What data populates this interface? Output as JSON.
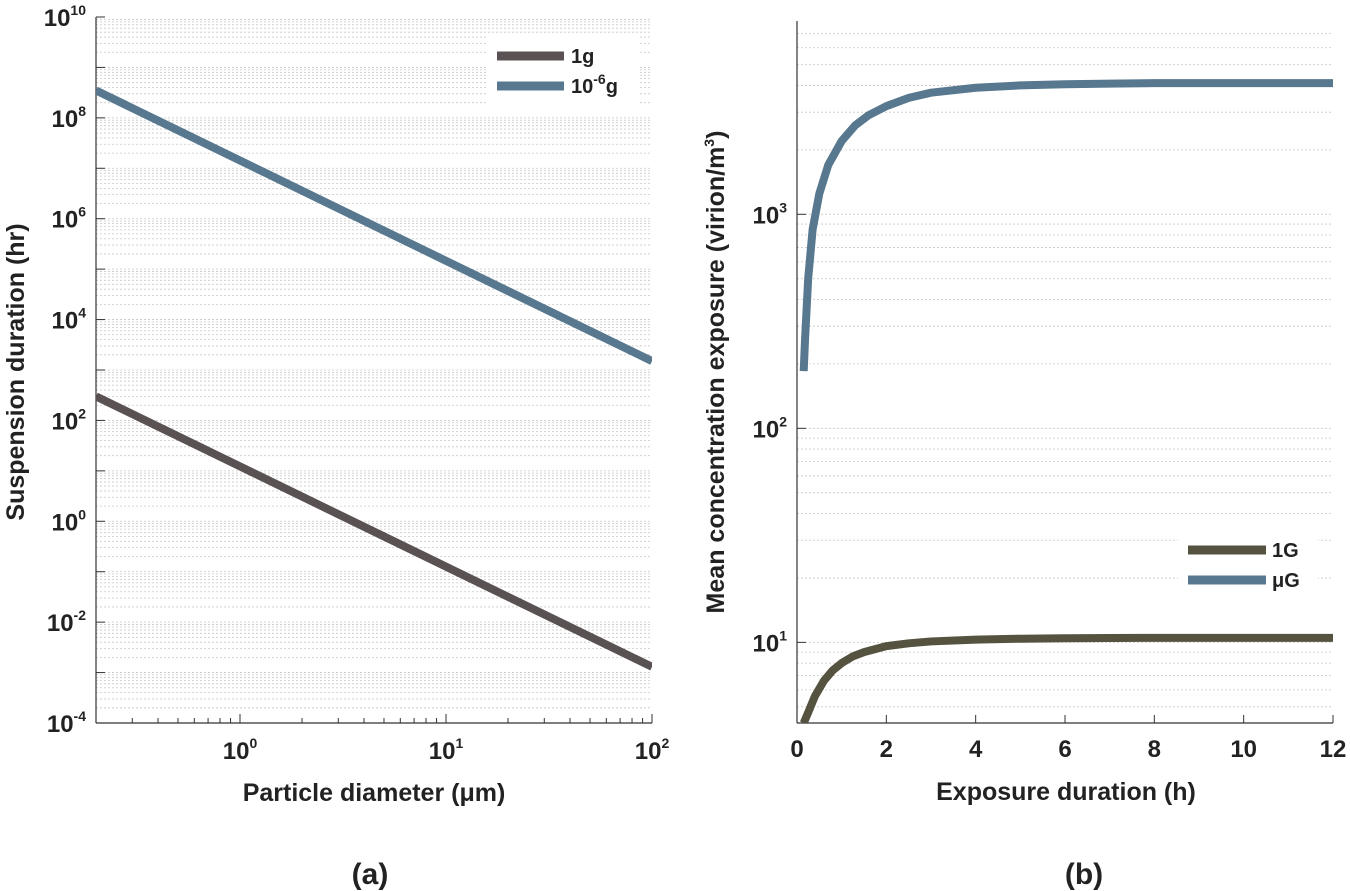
{
  "chart_data": [
    {
      "id": "a",
      "type": "line",
      "panel_label": "(a)",
      "title": "",
      "xlabel": "Particle diameter (μm)",
      "ylabel": "Suspension duration (hr)",
      "x_scale": "log",
      "y_scale": "log",
      "xlim": [
        0.2,
        100
      ],
      "ylim": [
        0.0001,
        10000000000
      ],
      "x_ticks": [
        {
          "value": 1,
          "base": "10",
          "exp": "0"
        },
        {
          "value": 10,
          "base": "10",
          "exp": "1"
        },
        {
          "value": 100,
          "base": "10",
          "exp": "2"
        }
      ],
      "y_ticks": [
        {
          "value": 0.0001,
          "base": "10",
          "exp": "-4"
        },
        {
          "value": 0.01,
          "base": "10",
          "exp": "-2"
        },
        {
          "value": 1,
          "base": "10",
          "exp": "0"
        },
        {
          "value": 100,
          "base": "10",
          "exp": "2"
        },
        {
          "value": 10000,
          "base": "10",
          "exp": "4"
        },
        {
          "value": 1000000,
          "base": "10",
          "exp": "6"
        },
        {
          "value": 100000000,
          "base": "10",
          "exp": "8"
        },
        {
          "value": 10000000000,
          "base": "10",
          "exp": "10"
        }
      ],
      "grid": "log minor, horizontal",
      "legend_position": "top-right",
      "series": [
        {
          "name": "1g",
          "name_base": "1g",
          "name_sup": "",
          "name_tail": "",
          "color": "#5a5152",
          "x": [
            0.2,
            100
          ],
          "y": [
            300,
            0.0013
          ]
        },
        {
          "name": "10-6g",
          "name_base": "10",
          "name_sup": "-6",
          "name_tail": "g",
          "color": "#57788f",
          "x": [
            0.2,
            100
          ],
          "y": [
            350000000,
            1500
          ]
        }
      ]
    },
    {
      "id": "b",
      "type": "line",
      "panel_label": "(b)",
      "title": "",
      "xlabel": "Exposure duration (h)",
      "ylabel_main": "Mean concentration exposure (virion/m",
      "ylabel_sup": "3",
      "ylabel_tail": ")",
      "x_scale": "linear",
      "y_scale": "log",
      "xlim": [
        0,
        12
      ],
      "ylim": [
        4.2,
        8000
      ],
      "x_ticks": [
        0,
        2,
        4,
        6,
        8,
        10,
        12
      ],
      "y_ticks": [
        {
          "value": 10,
          "base": "10",
          "exp": "1"
        },
        {
          "value": 100,
          "base": "10",
          "exp": "2"
        },
        {
          "value": 1000,
          "base": "10",
          "exp": "3"
        }
      ],
      "grid": "log minor, horizontal",
      "legend_position": "bottom-right",
      "series": [
        {
          "name": "1G",
          "color": "#55533f",
          "x": [
            0.15,
            0.25,
            0.4,
            0.6,
            0.8,
            1.0,
            1.25,
            1.5,
            2.0,
            2.5,
            3.0,
            4.0,
            5.0,
            6.0,
            7.0,
            8.0,
            9.0,
            10.0,
            11.0,
            12.0
          ],
          "y": [
            4.2,
            4.7,
            5.6,
            6.6,
            7.4,
            8.0,
            8.6,
            9.0,
            9.6,
            9.9,
            10.1,
            10.3,
            10.4,
            10.45,
            10.48,
            10.5,
            10.5,
            10.5,
            10.5,
            10.5
          ]
        },
        {
          "name": "μG",
          "color": "#57788f",
          "x": [
            0.15,
            0.18,
            0.25,
            0.35,
            0.5,
            0.7,
            1.0,
            1.3,
            1.6,
            2.0,
            2.5,
            3.0,
            4.0,
            5.0,
            6.0,
            7.0,
            8.0,
            10.0,
            12.0
          ],
          "y": [
            185,
            260,
            500,
            850,
            1250,
            1700,
            2200,
            2600,
            2900,
            3200,
            3500,
            3700,
            3900,
            4000,
            4050,
            4080,
            4100,
            4100,
            4100
          ]
        }
      ]
    }
  ]
}
